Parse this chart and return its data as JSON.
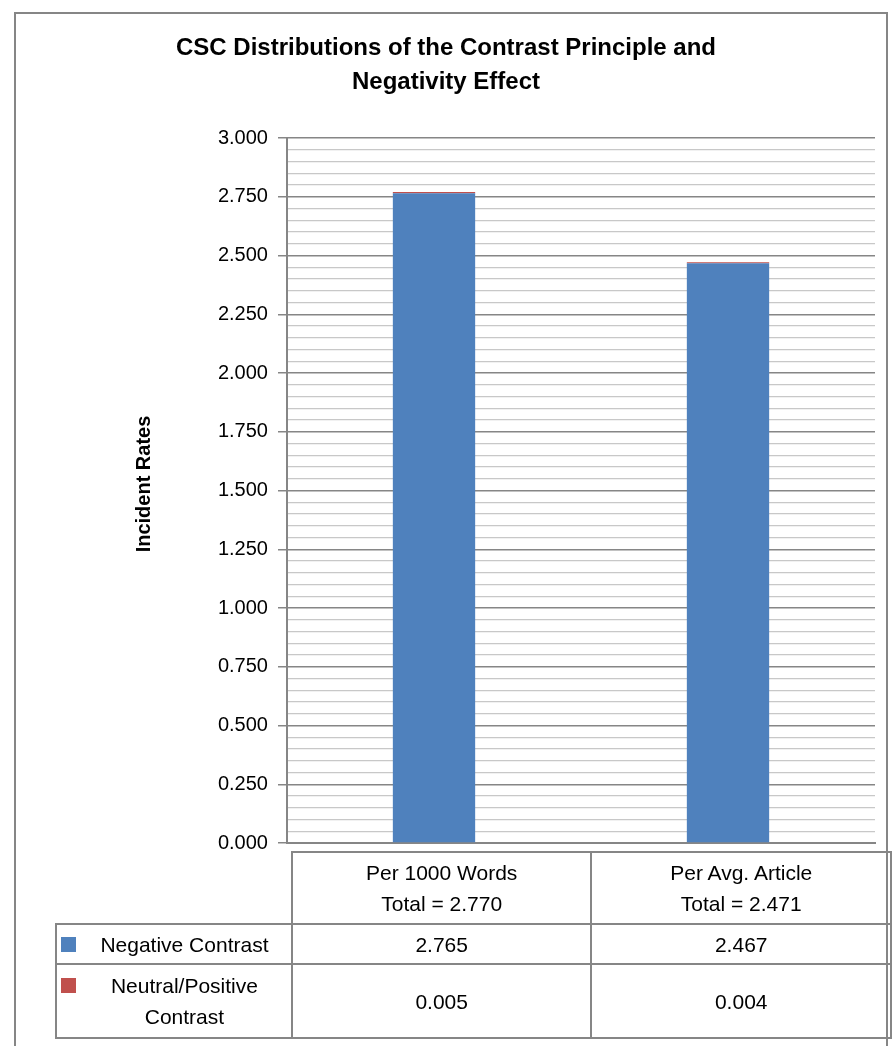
{
  "chart_data": {
    "type": "bar",
    "title": "CSC Distributions of the Contrast Principle and Negativity Effect",
    "ylabel": "Incident Rates",
    "categories": [
      "Per 1000 Words",
      "Per Avg. Article"
    ],
    "totals": [
      "Total = 2.770",
      "Total = 2.471"
    ],
    "stacked": true,
    "series": [
      {
        "name": "Negative Contrast",
        "color": "#4f81bd",
        "values": [
          2.765,
          2.467
        ]
      },
      {
        "name": "Neutral/Positive Contrast",
        "color": "#c0504d",
        "values": [
          0.005,
          0.004
        ]
      }
    ],
    "ylim": [
      0,
      3
    ],
    "yticks": [
      {
        "value": 0,
        "label": "0.000"
      },
      {
        "value": 0.05,
        "label": null
      },
      {
        "value": 0.1,
        "label": null
      },
      {
        "value": 0.15,
        "label": null
      },
      {
        "value": 0.2,
        "label": null
      },
      {
        "value": 0.25,
        "label": "0.250"
      },
      {
        "value": 0.3,
        "label": null
      },
      {
        "value": 0.35,
        "label": null
      },
      {
        "value": 0.4,
        "label": null
      },
      {
        "value": 0.45,
        "label": null
      },
      {
        "value": 0.5,
        "label": "0.500"
      },
      {
        "value": 0.55,
        "label": null
      },
      {
        "value": 0.6,
        "label": null
      },
      {
        "value": 0.65,
        "label": null
      },
      {
        "value": 0.7,
        "label": null
      },
      {
        "value": 0.75,
        "label": "0.750"
      },
      {
        "value": 0.8,
        "label": null
      },
      {
        "value": 0.85,
        "label": null
      },
      {
        "value": 0.9,
        "label": null
      },
      {
        "value": 0.95,
        "label": null
      },
      {
        "value": 1,
        "label": "1.000"
      },
      {
        "value": 1.05,
        "label": null
      },
      {
        "value": 1.1,
        "label": null
      },
      {
        "value": 1.15,
        "label": null
      },
      {
        "value": 1.2,
        "label": null
      },
      {
        "value": 1.25,
        "label": "1.250"
      },
      {
        "value": 1.3,
        "label": null
      },
      {
        "value": 1.35,
        "label": null
      },
      {
        "value": 1.4,
        "label": null
      },
      {
        "value": 1.45,
        "label": null
      },
      {
        "value": 1.5,
        "label": "1.500"
      },
      {
        "value": 1.55,
        "label": null
      },
      {
        "value": 1.6,
        "label": null
      },
      {
        "value": 1.65,
        "label": null
      },
      {
        "value": 1.7,
        "label": null
      },
      {
        "value": 1.75,
        "label": "1.750"
      },
      {
        "value": 1.8,
        "label": null
      },
      {
        "value": 1.85,
        "label": null
      },
      {
        "value": 1.9,
        "label": null
      },
      {
        "value": 1.95,
        "label": null
      },
      {
        "value": 2,
        "label": "2.000"
      },
      {
        "value": 2.05,
        "label": null
      },
      {
        "value": 2.1,
        "label": null
      },
      {
        "value": 2.15,
        "label": null
      },
      {
        "value": 2.2,
        "label": null
      },
      {
        "value": 2.25,
        "label": "2.250"
      },
      {
        "value": 2.3,
        "label": null
      },
      {
        "value": 2.35,
        "label": null
      },
      {
        "value": 2.4,
        "label": null
      },
      {
        "value": 2.45,
        "label": null
      },
      {
        "value": 2.5,
        "label": "2.500"
      },
      {
        "value": 2.55,
        "label": null
      },
      {
        "value": 2.6,
        "label": null
      },
      {
        "value": 2.65,
        "label": null
      },
      {
        "value": 2.7,
        "label": null
      },
      {
        "value": 2.75,
        "label": "2.750"
      },
      {
        "value": 2.8,
        "label": null
      },
      {
        "value": 2.85,
        "label": null
      },
      {
        "value": 2.9,
        "label": null
      },
      {
        "value": 2.95,
        "label": null
      },
      {
        "value": 3,
        "label": "3.000"
      }
    ],
    "grid": "y",
    "legend": "bottom",
    "data_labels": true
  }
}
